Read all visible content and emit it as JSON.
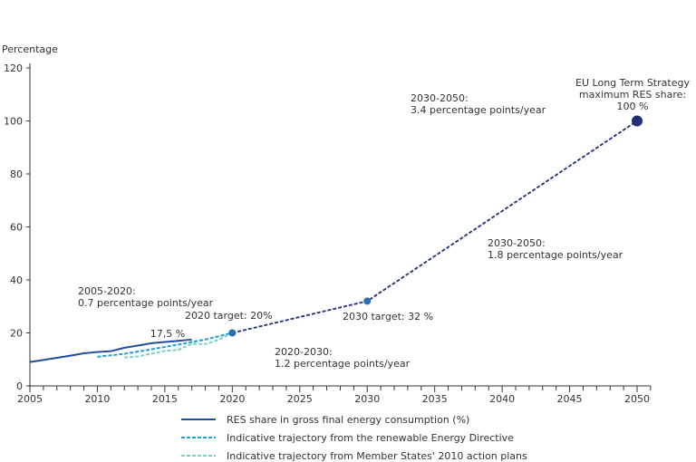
{
  "chart_data": {
    "type": "line",
    "ylabel": "Percentage",
    "xlim": [
      2005,
      2050
    ],
    "ylim": [
      0,
      120
    ],
    "xticks": [
      2005,
      2010,
      2015,
      2020,
      2025,
      2030,
      2035,
      2040,
      2045,
      2050
    ],
    "yticks": [
      0,
      20,
      40,
      60,
      80,
      100,
      120
    ],
    "series": [
      {
        "name": "RES share in gross final energy consumption (%)",
        "color": "#1f4e9c",
        "dash": false,
        "x": [
          2005,
          2006,
          2007,
          2008,
          2009,
          2010,
          2011,
          2012,
          2013,
          2014,
          2015,
          2016,
          2017
        ],
        "y": [
          9.0,
          9.8,
          10.6,
          11.4,
          12.3,
          12.8,
          13.1,
          14.4,
          15.2,
          16.1,
          16.6,
          17.0,
          17.5
        ]
      },
      {
        "name": "Indicative trajectory from the renewable Energy Directive",
        "color": "#1aa0d8",
        "dash": true,
        "x": [
          2010,
          2012,
          2014,
          2016,
          2018,
          2020
        ],
        "y": [
          11.0,
          12.1,
          13.8,
          15.6,
          17.5,
          20.0
        ]
      },
      {
        "name": "Indicative trajectory from Member States' 2010 action plans",
        "color": "#7fcfc9",
        "dash": true,
        "x": [
          2012,
          2013,
          2014,
          2015,
          2016,
          2017,
          2018,
          2019,
          2020
        ],
        "y": [
          10.7,
          11.1,
          12.2,
          13.2,
          13.6,
          15.9,
          15.8,
          17.4,
          20.0
        ]
      },
      {
        "name": "Targets path",
        "color": "#1f2f7a",
        "dash": true,
        "legend": false,
        "x": [
          2020,
          2030,
          2050
        ],
        "y": [
          20,
          32,
          100
        ]
      }
    ],
    "points": [
      {
        "x": 2020,
        "y": 20,
        "size": "small"
      },
      {
        "x": 2030,
        "y": 32,
        "size": "small"
      },
      {
        "x": 2050,
        "y": 100,
        "size": "large"
      }
    ],
    "annotations": [
      {
        "lines": [
          "2005-2020:",
          "0.7 percentage points/year"
        ]
      },
      {
        "lines": [
          "17,5 %"
        ]
      },
      {
        "lines": [
          "2020 target: 20%"
        ]
      },
      {
        "lines": [
          "2020-2030:",
          "1.2 percentage points/year"
        ]
      },
      {
        "lines": [
          "2030 target: 32 %"
        ]
      },
      {
        "lines": [
          "2030-2050:",
          "1.8 percentage points/year"
        ]
      },
      {
        "lines": [
          "2030-2050:",
          "3.4 percentage points/year"
        ]
      },
      {
        "lines": [
          "EU Long Term Strategy",
          "maximum RES share:",
          "100 %"
        ]
      }
    ]
  }
}
